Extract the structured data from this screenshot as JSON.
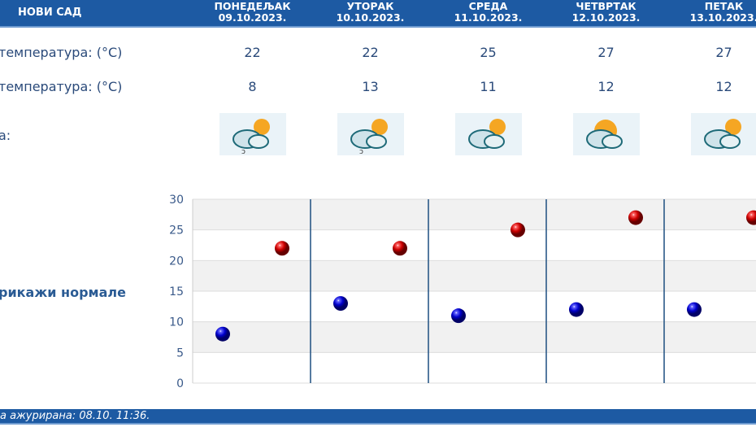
{
  "header": {
    "city": "НОВИ САД",
    "days": [
      {
        "name": "ПОНЕДЕЉАК",
        "date": "09.10.2023."
      },
      {
        "name": "УТОРАК",
        "date": "10.10.2023."
      },
      {
        "name": "СРЕДА",
        "date": "11.10.2023."
      },
      {
        "name": "ЧЕТВРТАК",
        "date": "12.10.2023."
      },
      {
        "name": "ПЕТАК",
        "date": "13.10.2023."
      }
    ]
  },
  "rows": {
    "max_label": "температура: (°C)",
    "min_label": "температура: (°C)",
    "weather_label": "а:",
    "max": [
      "22",
      "22",
      "25",
      "27",
      "27"
    ],
    "min": [
      "8",
      "13",
      "11",
      "12",
      "12"
    ],
    "icons": [
      "partly-cloudy-light-rain-icon",
      "partly-cloudy-light-rain-icon",
      "partly-cloudy-icon",
      "mostly-sunny-icon",
      "partly-cloudy-icon"
    ]
  },
  "norm_link": "рикажи нормале",
  "footer": {
    "text": "а ажурирана:  08.10. 11:36."
  },
  "chart_data": {
    "type": "scatter",
    "categories": [
      "09.10.2023.",
      "10.10.2023.",
      "11.10.2023.",
      "12.10.2023.",
      "13.10.2023."
    ],
    "series": [
      {
        "values": [
          22,
          22,
          25,
          27,
          27
        ],
        "color": "#cc0000"
      },
      {
        "values": [
          8,
          13,
          11,
          12,
          12
        ],
        "color": "#0000cc"
      }
    ],
    "ylim": [
      0,
      30
    ],
    "yticks": [
      0,
      5,
      10,
      15,
      20,
      25,
      30
    ],
    "grid": true
  }
}
